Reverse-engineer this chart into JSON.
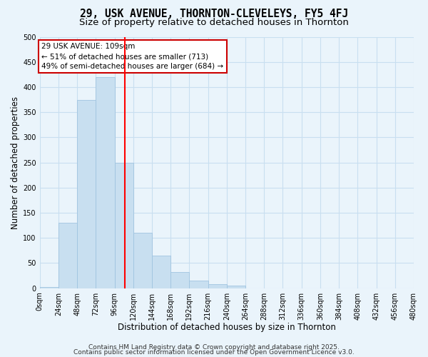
{
  "title": "29, USK AVENUE, THORNTON-CLEVELEYS, FY5 4FJ",
  "subtitle": "Size of property relative to detached houses in Thornton",
  "xlabel": "Distribution of detached houses by size in Thornton",
  "ylabel": "Number of detached properties",
  "bar_color": "#c8dff0",
  "bar_edge_color": "#a0c4e0",
  "bin_edges": [
    0,
    24,
    48,
    72,
    96,
    120,
    144,
    168,
    192,
    216,
    240,
    264,
    288,
    312,
    336,
    360,
    384,
    408,
    432,
    456,
    480
  ],
  "bar_heights": [
    3,
    130,
    375,
    420,
    250,
    110,
    65,
    32,
    15,
    8,
    5,
    0,
    0,
    0,
    0,
    0,
    0,
    0,
    0,
    0
  ],
  "vline_x": 109,
  "vline_color": "red",
  "annotation_title": "29 USK AVENUE: 109sqm",
  "annotation_line1": "← 51% of detached houses are smaller (713)",
  "annotation_line2": "49% of semi-detached houses are larger (684) →",
  "ylim": [
    0,
    500
  ],
  "yticks": [
    0,
    50,
    100,
    150,
    200,
    250,
    300,
    350,
    400,
    450,
    500
  ],
  "xtick_labels": [
    "0sqm",
    "24sqm",
    "48sqm",
    "72sqm",
    "96sqm",
    "120sqm",
    "144sqm",
    "168sqm",
    "192sqm",
    "216sqm",
    "240sqm",
    "264sqm",
    "288sqm",
    "312sqm",
    "336sqm",
    "360sqm",
    "384sqm",
    "408sqm",
    "432sqm",
    "456sqm",
    "480sqm"
  ],
  "footnote1": "Contains HM Land Registry data © Crown copyright and database right 2025.",
  "footnote2": "Contains public sector information licensed under the Open Government Licence v3.0.",
  "background_color": "#eaf4fb",
  "grid_color": "#c8dff0",
  "title_fontsize": 10.5,
  "subtitle_fontsize": 9.5,
  "axis_label_fontsize": 8.5,
  "tick_fontsize": 7,
  "footnote_fontsize": 6.5
}
